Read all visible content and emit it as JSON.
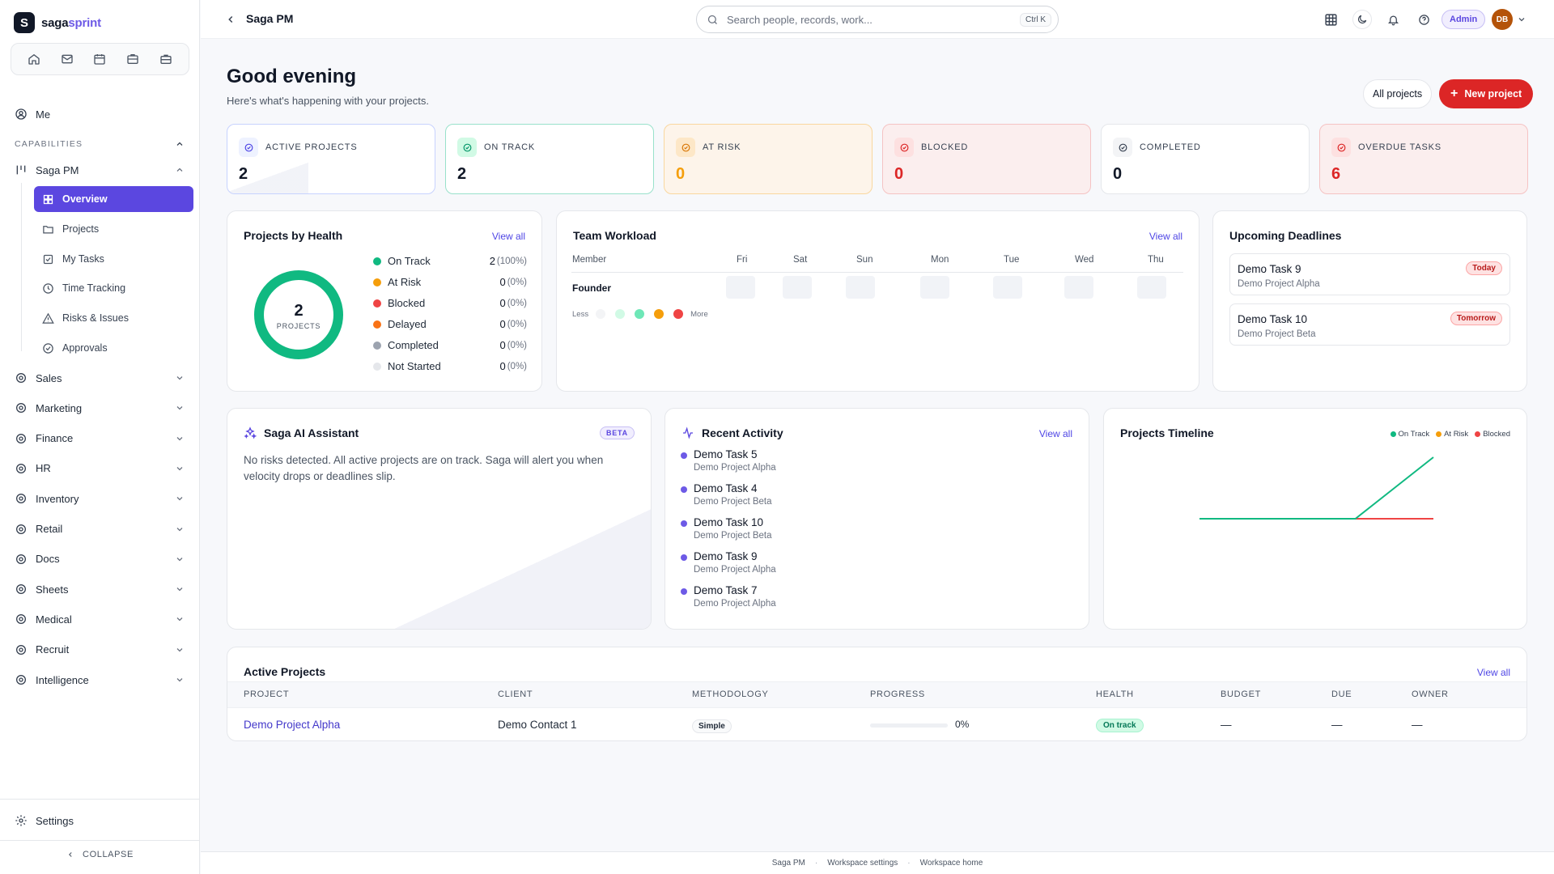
{
  "brand": {
    "name_part1": "saga",
    "name_part2": "sprint",
    "logo_letter": "S"
  },
  "quick_icons": [
    "home-icon",
    "mail-icon",
    "calendar-icon",
    "inbox-icon",
    "briefcase-icon"
  ],
  "sidebar": {
    "me": "Me",
    "section": "CAPABILITIES",
    "saga_pm": "Saga PM",
    "sub_items": [
      {
        "label": "Overview",
        "active": true
      },
      {
        "label": "Projects"
      },
      {
        "label": "My Tasks"
      },
      {
        "label": "Time Tracking"
      },
      {
        "label": "Risks & Issues"
      },
      {
        "label": "Approvals"
      }
    ],
    "groups": [
      "Sales",
      "Marketing",
      "Finance",
      "HR",
      "Inventory",
      "Retail",
      "Docs",
      "Sheets",
      "Medical",
      "Recruit",
      "Intelligence"
    ],
    "settings": "Settings",
    "collapse": "COLLAPSE"
  },
  "topbar": {
    "title": "Saga PM",
    "search_placeholder": "Search people, records, work...",
    "shortcut": "Ctrl K",
    "admin": "Admin",
    "avatar": "DB"
  },
  "header": {
    "greeting": "Good evening",
    "subtitle": "Here's what's happening with your projects.",
    "all_projects": "All projects",
    "new_project": "New project"
  },
  "stats": [
    {
      "label": "ACTIVE PROJECTS",
      "value": "2",
      "color": "#111827",
      "bg": "#ffffff",
      "border": "#c7d2fe",
      "icon_bg": "#eef2ff",
      "icon_color": "#4f46e5"
    },
    {
      "label": "ON TRACK",
      "value": "2",
      "color": "#111827",
      "bg": "#ffffff",
      "border": "#99e1cb",
      "icon_bg": "#d1fae5",
      "icon_color": "#059669"
    },
    {
      "label": "AT RISK",
      "value": "0",
      "color": "#f59e0b",
      "bg": "#fdf4ea",
      "border": "#f9d79f",
      "icon_bg": "#fde7c7",
      "icon_color": "#d97706"
    },
    {
      "label": "BLOCKED",
      "value": "0",
      "color": "#dc2626",
      "bg": "#fbeeee",
      "border": "#f5c3c3",
      "icon_bg": "#fde0e0",
      "icon_color": "#dc2626"
    },
    {
      "label": "COMPLETED",
      "value": "0",
      "color": "#111827",
      "bg": "#ffffff",
      "border": "#e5e7eb",
      "icon_bg": "#f3f4f6",
      "icon_color": "#374151"
    },
    {
      "label": "OVERDUE TASKS",
      "value": "6",
      "color": "#dc2626",
      "bg": "#fbeeee",
      "border": "#f5c3c3",
      "icon_bg": "#fde0e0",
      "icon_color": "#dc2626"
    }
  ],
  "health": {
    "title": "Projects by Health",
    "view_all": "View all",
    "donut_value": "2",
    "donut_label": "PROJECTS",
    "legend": [
      {
        "name": "On Track",
        "count": "2",
        "pct": "(100%)",
        "color": "#10b981"
      },
      {
        "name": "At Risk",
        "count": "0",
        "pct": "(0%)",
        "color": "#f59e0b"
      },
      {
        "name": "Blocked",
        "count": "0",
        "pct": "(0%)",
        "color": "#ef4444"
      },
      {
        "name": "Delayed",
        "count": "0",
        "pct": "(0%)",
        "color": "#f97316"
      },
      {
        "name": "Completed",
        "count": "0",
        "pct": "(0%)",
        "color": "#9ca3af"
      },
      {
        "name": "Not Started",
        "count": "0",
        "pct": "(0%)",
        "color": "#e5e7eb"
      }
    ]
  },
  "workload": {
    "title": "Team Workload",
    "view_all": "View all",
    "member_header": "Member",
    "days": [
      "Fri",
      "Sat",
      "Sun",
      "Mon",
      "Tue",
      "Wed",
      "Thu"
    ],
    "member": "Founder",
    "less": "Less",
    "more": "More",
    "heat_colors": [
      "#f3f4f6",
      "#d1fae5",
      "#6ee7b7",
      "#f59e0b",
      "#ef4444"
    ]
  },
  "deadlines": {
    "title": "Upcoming Deadlines",
    "items": [
      {
        "task": "Demo Task 9",
        "project": "Demo Project Alpha",
        "tag": "Today"
      },
      {
        "task": "Demo Task 10",
        "project": "Demo Project Beta",
        "tag": "Tomorrow"
      }
    ]
  },
  "ai": {
    "title": "Saga AI Assistant",
    "badge": "BETA",
    "text": "No risks detected. All active projects are on track. Saga will alert you when velocity drops or deadlines slip."
  },
  "activity": {
    "title": "Recent Activity",
    "view_all": "View all",
    "items": [
      {
        "task": "Demo Task 5",
        "project": "Demo Project Alpha"
      },
      {
        "task": "Demo Task 4",
        "project": "Demo Project Beta"
      },
      {
        "task": "Demo Task 10",
        "project": "Demo Project Beta"
      },
      {
        "task": "Demo Task 9",
        "project": "Demo Project Alpha"
      },
      {
        "task": "Demo Task 7",
        "project": "Demo Project Alpha"
      }
    ]
  },
  "timeline": {
    "title": "Projects Timeline",
    "legend": [
      {
        "name": "On Track",
        "color": "#10b981"
      },
      {
        "name": "At Risk",
        "color": "#f59e0b"
      },
      {
        "name": "Blocked",
        "color": "#ef4444"
      }
    ]
  },
  "chart_data": {
    "type": "line",
    "title": "Projects Timeline",
    "x": [
      0,
      1,
      2,
      3,
      4,
      5,
      6
    ],
    "series": [
      {
        "name": "On Track",
        "values": [
          0,
          0,
          0,
          0,
          0,
          1,
          2
        ],
        "color": "#10b981"
      },
      {
        "name": "Blocked",
        "values": [
          0,
          0,
          0,
          0,
          0,
          0,
          0
        ],
        "color": "#ef4444"
      }
    ],
    "ylim": [
      0,
      2.4
    ],
    "grid": false,
    "legend": "top-right"
  },
  "projects_table": {
    "title": "Active Projects",
    "view_all": "View all",
    "columns": [
      "PROJECT",
      "CLIENT",
      "METHODOLOGY",
      "PROGRESS",
      "HEALTH",
      "BUDGET",
      "DUE",
      "OWNER"
    ],
    "rows": [
      {
        "project": "Demo Project Alpha",
        "client": "Demo Contact 1",
        "methodology": "Simple",
        "progress": 0,
        "progress_label": "0%",
        "health": "On track",
        "budget": "—",
        "due": "—",
        "owner": "—"
      }
    ]
  },
  "footer": [
    "Saga PM",
    "Workspace settings",
    "Workspace home"
  ]
}
